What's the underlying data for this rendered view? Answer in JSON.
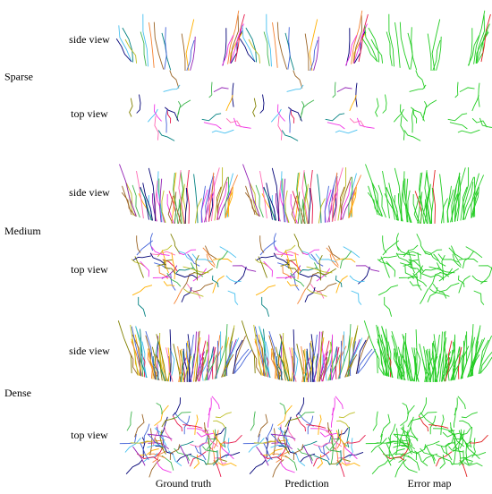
{
  "groups": [
    {
      "label": "Sparse",
      "views": [
        "side view",
        "top view"
      ]
    },
    {
      "label": "Medium",
      "views": [
        "side view",
        "top view"
      ]
    },
    {
      "label": "Dense",
      "views": [
        "side view",
        "top view"
      ]
    }
  ],
  "columns": [
    "Ground truth",
    "Prediction",
    "Error map"
  ]
}
